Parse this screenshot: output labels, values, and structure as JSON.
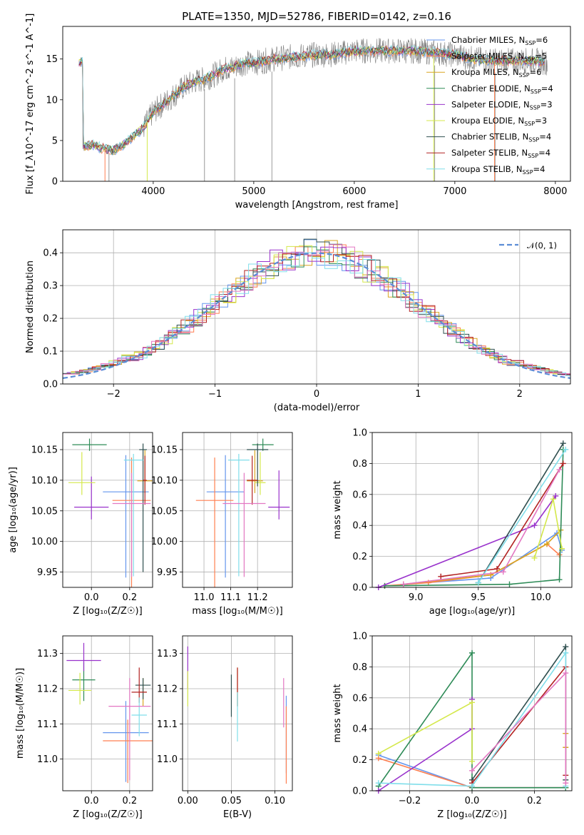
{
  "figure_title": "PLATE=1350, MJD=52786, FIBERID=0142, z=0.16",
  "colors": [
    "#6495ed",
    "#ff7f50",
    "#daa520",
    "#2e8b57",
    "#9932cc",
    "#d4e84b",
    "#2f4f4f",
    "#b22222",
    "#80deea",
    "#e377c2"
  ],
  "chart_data": [
    {
      "id": "spectrum",
      "type": "line",
      "xlabel": "wavelength [Angstrom, rest frame]",
      "ylabel": "Flux [f_λ10^-17 erg cm^-2 s^-1 A^-1]",
      "xlim": [
        3100,
        8150
      ],
      "ylim": [
        0,
        19
      ],
      "xticks": [
        4000,
        5000,
        6000,
        7000,
        8000
      ],
      "yticks": [
        0,
        5,
        10,
        15
      ],
      "legend_position": "right",
      "series": [
        {
          "name": "Chabrier MILES, N_SSP=6"
        },
        {
          "name": "Salpeter MILES, N_SSP=5"
        },
        {
          "name": "Kroupa MILES, N_SSP=6"
        },
        {
          "name": "Chabrier ELODIE, N_SSP=4"
        },
        {
          "name": "Salpeter ELODIE, N_SSP=3"
        },
        {
          "name": "Kroupa ELODIE, N_SSP=3"
        },
        {
          "name": "Chabrier STELIB, N_SSP=4"
        },
        {
          "name": "Salpeter STELIB, N_SSP=4"
        },
        {
          "name": "Kroupa STELIB, N_SSP=4"
        }
      ],
      "data_trend": {
        "x": [
          3300,
          3400,
          3500,
          3600,
          3700,
          3800,
          3900,
          4000,
          4100,
          4200,
          4300,
          4400,
          4500,
          4600,
          4700,
          4800,
          4900,
          5000,
          5200,
          5400,
          5600,
          5800,
          6000,
          6200,
          6400,
          6600,
          6800,
          7000,
          7200,
          7400,
          7600,
          7800,
          7900
        ],
        "y": [
          4.2,
          4.5,
          4.0,
          3.8,
          4.5,
          5.5,
          6.5,
          8.5,
          9.5,
          10.5,
          11.5,
          12.2,
          12.5,
          13.0,
          13.8,
          14.0,
          14.5,
          14.5,
          15.0,
          15.3,
          15.5,
          15.6,
          16.0,
          16.0,
          16.0,
          16.0,
          15.8,
          15.5,
          15.0,
          14.8,
          14.8,
          14.8,
          14.6
        ]
      }
    },
    {
      "id": "residuals",
      "type": "histogram",
      "xlabel": "(data-model)/error",
      "ylabel": "Normed distribution",
      "xlim": [
        -2.5,
        2.5
      ],
      "ylim": [
        0,
        0.47
      ],
      "xticks": [
        -2,
        -1,
        0,
        1,
        2
      ],
      "yticks": [
        0.0,
        0.1,
        0.2,
        0.3,
        0.4
      ],
      "legend_position": "top-right",
      "reference_curve": {
        "name": "𝒩(0, 1)",
        "mean": 0,
        "sigma": 1
      },
      "bin_width": 0.125
    },
    {
      "id": "age_vs_Z",
      "type": "errorbar",
      "xlabel": "Z [log10(Z/Z☉)]",
      "ylabel": "age  [log10(age/yr)]",
      "xlim": [
        -0.15,
        0.32
      ],
      "ylim": [
        9.925,
        10.178
      ],
      "xticks": [
        0.0,
        0.2
      ],
      "yticks": [
        9.95,
        10.0,
        10.05,
        10.1,
        10.15
      ],
      "points": [
        {
          "x": 0.18,
          "y": 10.081,
          "xerr": 0.12,
          "yerr": [
            0.14,
            0.06
          ],
          "c": 0
        },
        {
          "x": 0.21,
          "y": 10.067,
          "xerr": 0.1,
          "yerr": [
            0.15,
            0.07
          ],
          "c": 1
        },
        {
          "x": 0.28,
          "y": 10.099,
          "xerr": 0.04,
          "yerr": [
            0.02,
            0.05
          ],
          "c": 2
        },
        {
          "x": -0.01,
          "y": 10.158,
          "xerr": 0.09,
          "yerr": [
            0.01,
            0.01
          ],
          "c": 3
        },
        {
          "x": 0.0,
          "y": 10.056,
          "xerr": 0.09,
          "yerr": [
            0.02,
            0.05
          ],
          "c": 4
        },
        {
          "x": -0.05,
          "y": 10.096,
          "xerr": 0.07,
          "yerr": [
            0.02,
            0.05
          ],
          "c": 5
        },
        {
          "x": 0.27,
          "y": 10.15,
          "xerr": 0.02,
          "yerr": [
            0.2,
            0.01
          ],
          "c": 6
        },
        {
          "x": 0.28,
          "y": 10.1,
          "xerr": 0.01,
          "yerr": [
            0.04,
            0.04
          ],
          "c": 7
        },
        {
          "x": 0.22,
          "y": 10.133,
          "xerr": 0.05,
          "yerr": [
            0.19,
            0.01
          ],
          "c": 8
        },
        {
          "x": 0.21,
          "y": 10.062,
          "xerr": 0.1,
          "yerr": [
            0.12,
            0.05
          ],
          "c": 9
        }
      ]
    },
    {
      "id": "age_vs_mass",
      "type": "errorbar",
      "xlabel": "mass [log10(M/M☉)]",
      "ylabel": "",
      "xlim": [
        10.92,
        11.33
      ],
      "ylim": [
        9.925,
        10.178
      ],
      "xticks": [
        11.0,
        11.1,
        11.2
      ],
      "yticks": [
        9.95,
        10.0,
        10.05,
        10.1,
        10.15
      ],
      "points": [
        {
          "x": 11.08,
          "y": 10.081,
          "xerr": 0.07,
          "yerr": [
            0.14,
            0.06
          ],
          "c": 0
        },
        {
          "x": 11.04,
          "y": 10.067,
          "xerr": 0.07,
          "yerr": [
            0.15,
            0.07
          ],
          "c": 1
        },
        {
          "x": 11.19,
          "y": 10.099,
          "xerr": 0.03,
          "yerr": [
            0.02,
            0.05
          ],
          "c": 2
        },
        {
          "x": 11.22,
          "y": 10.158,
          "xerr": 0.04,
          "yerr": [
            0.01,
            0.01
          ],
          "c": 3
        },
        {
          "x": 11.28,
          "y": 10.056,
          "xerr": 0.04,
          "yerr": [
            0.02,
            0.06
          ],
          "c": 4
        },
        {
          "x": 11.21,
          "y": 10.096,
          "xerr": 0.02,
          "yerr": [
            0.02,
            0.05
          ],
          "c": 5
        },
        {
          "x": 11.2,
          "y": 10.15,
          "xerr": 0.04,
          "yerr": [
            0.06,
            0.01
          ],
          "c": 6
        },
        {
          "x": 11.18,
          "y": 10.1,
          "xerr": 0.02,
          "yerr": [
            0.04,
            0.04
          ],
          "c": 7
        },
        {
          "x": 11.13,
          "y": 10.133,
          "xerr": 0.04,
          "yerr": [
            0.19,
            0.01
          ],
          "c": 8
        },
        {
          "x": 11.15,
          "y": 10.062,
          "xerr": 0.08,
          "yerr": [
            0.12,
            0.05
          ],
          "c": 9
        }
      ]
    },
    {
      "id": "massweight_vs_age",
      "type": "line",
      "xlabel": "age  [log10(age/yr)]",
      "ylabel": "mass weight",
      "xlim": [
        8.65,
        10.25
      ],
      "ylim": [
        0,
        1.0
      ],
      "xticks": [
        9.0,
        9.5,
        10.0
      ],
      "yticks": [
        0.0,
        0.2,
        0.4,
        0.6,
        0.8,
        1.0
      ],
      "series": [
        {
          "c": 0,
          "x": [
            8.9,
            9.6,
            10.13,
            10.17
          ],
          "y": [
            0.02,
            0.06,
            0.35,
            0.24
          ]
        },
        {
          "c": 1,
          "x": [
            8.75,
            9.1,
            9.6,
            10.05,
            10.15
          ],
          "y": [
            0.01,
            0.03,
            0.08,
            0.28,
            0.21
          ]
        },
        {
          "c": 2,
          "x": [
            8.9,
            9.6,
            10.05,
            10.16
          ],
          "y": [
            0.02,
            0.08,
            0.28,
            0.37
          ]
        },
        {
          "c": 3,
          "x": [
            8.75,
            9.75,
            10.15,
            10.18
          ],
          "y": [
            0.01,
            0.02,
            0.05,
            0.89
          ]
        },
        {
          "c": 4,
          "x": [
            8.7,
            9.95,
            10.12
          ],
          "y": [
            0.0,
            0.4,
            0.59
          ]
        },
        {
          "c": 5,
          "x": [
            9.95,
            10.1,
            10.17
          ],
          "y": [
            0.19,
            0.57,
            0.25
          ]
        },
        {
          "c": 6,
          "x": [
            9.5,
            10.18
          ],
          "y": [
            0.03,
            0.93
          ]
        },
        {
          "c": 7,
          "x": [
            9.2,
            9.65,
            10.18
          ],
          "y": [
            0.07,
            0.12,
            0.8
          ]
        },
        {
          "c": 8,
          "x": [
            9.5,
            10.2
          ],
          "y": [
            0.03,
            0.89
          ]
        },
        {
          "c": 9,
          "x": [
            8.9,
            9.7,
            10.15
          ],
          "y": [
            0.02,
            0.1,
            0.76
          ]
        }
      ]
    },
    {
      "id": "mass_vs_Z",
      "type": "errorbar",
      "xlabel": "Z [log10(Z/Z☉)]",
      "ylabel": "mass [log10(M/M☉)]",
      "xlim": [
        -0.15,
        0.32
      ],
      "ylim": [
        10.91,
        11.35
      ],
      "xticks": [
        0.0,
        0.2
      ],
      "yticks": [
        11.0,
        11.1,
        11.2,
        11.3
      ],
      "points": [
        {
          "x": 0.18,
          "y": 11.075,
          "xerr": 0.12,
          "yerr": [
            0.14,
            0.09
          ],
          "c": 0
        },
        {
          "x": 0.19,
          "y": 11.052,
          "xerr": 0.13,
          "yerr": [
            0.12,
            0.06
          ],
          "c": 1
        },
        {
          "x": 0.27,
          "y": 11.19,
          "xerr": 0.02,
          "yerr": [
            0.04,
            0.04
          ],
          "c": 2
        },
        {
          "x": -0.04,
          "y": 11.225,
          "xerr": 0.06,
          "yerr": [
            0.06,
            0.05
          ],
          "c": 3
        },
        {
          "x": -0.04,
          "y": 11.28,
          "xerr": 0.09,
          "yerr": [
            0.03,
            0.05
          ],
          "c": 4
        },
        {
          "x": -0.06,
          "y": 11.195,
          "xerr": 0.06,
          "yerr": [
            0.04,
            0.05
          ],
          "c": 5
        },
        {
          "x": 0.27,
          "y": 11.21,
          "xerr": 0.04,
          "yerr": [
            0.04,
            0.02
          ],
          "c": 6
        },
        {
          "x": 0.25,
          "y": 11.19,
          "xerr": 0.04,
          "yerr": [
            0.03,
            0.07
          ],
          "c": 7
        },
        {
          "x": 0.25,
          "y": 11.125,
          "xerr": 0.04,
          "yerr": [
            0.06,
            0.05
          ],
          "c": 8
        },
        {
          "x": 0.2,
          "y": 11.15,
          "xerr": 0.11,
          "yerr": [
            0.21,
            0.08
          ],
          "c": 9
        }
      ]
    },
    {
      "id": "mass_vs_ebv",
      "type": "errorbar",
      "xlabel": "E(B-V)",
      "ylabel": "",
      "xlim": [
        -0.006,
        0.12
      ],
      "ylim": [
        10.91,
        11.35
      ],
      "xticks": [
        0.0,
        0.05,
        0.1
      ],
      "yticks": [
        11.0,
        11.1,
        11.2,
        11.3
      ],
      "points": [
        {
          "x": 0.113,
          "y": 11.08,
          "xerr": 0,
          "yerr": [
            0.12,
            0.1
          ],
          "c": 0
        },
        {
          "x": 0.113,
          "y": 11.05,
          "xerr": 0,
          "yerr": [
            0.12,
            0.1
          ],
          "c": 1
        },
        {
          "x": 0.057,
          "y": 11.2,
          "xerr": 0,
          "yerr": [
            0.05,
            0.06
          ],
          "c": 2
        },
        {
          "x": 0.0,
          "y": 11.26,
          "xerr": 0,
          "yerr": [
            0.06,
            0.06
          ],
          "c": 4
        },
        {
          "x": 0.0,
          "y": 11.19,
          "xerr": 0,
          "yerr": [
            0.04,
            0.06
          ],
          "c": 5
        },
        {
          "x": 0.05,
          "y": 11.18,
          "xerr": 0,
          "yerr": [
            0.06,
            0.06
          ],
          "c": 6
        },
        {
          "x": 0.057,
          "y": 11.19,
          "xerr": 0,
          "yerr": [
            0.04,
            0.07
          ],
          "c": 7
        },
        {
          "x": 0.057,
          "y": 11.13,
          "xerr": 0,
          "yerr": [
            0.08,
            0.06
          ],
          "c": 8
        },
        {
          "x": 0.11,
          "y": 11.15,
          "xerr": 0,
          "yerr": [
            0.06,
            0.08
          ],
          "c": 9
        }
      ]
    },
    {
      "id": "massweight_vs_Z",
      "type": "line",
      "xlabel": "Z [log10(Z/Z☉)]",
      "ylabel": "mass weight",
      "xlim": [
        -0.32,
        0.32
      ],
      "ylim": [
        0,
        1.0
      ],
      "xticks": [
        -0.2,
        0.0,
        0.2
      ],
      "yticks": [
        0.0,
        0.2,
        0.4,
        0.6,
        0.8,
        1.0
      ],
      "series": [
        {
          "c": 0,
          "x": [
            -0.3,
            0.0,
            0.3
          ],
          "y": [
            0.23,
            0.02,
            0.02
          ]
        },
        {
          "c": 1,
          "x": [
            -0.3,
            0.0,
            0.3
          ],
          "y": [
            0.21,
            0.02,
            0.02
          ]
        },
        {
          "c": 2,
          "x": [
            0.3,
            0.3,
            0.3
          ],
          "y": [
            0.37,
            0.28,
            0.02
          ]
        },
        {
          "c": 3,
          "x": [
            -0.3,
            0.0,
            0.0,
            0.3
          ],
          "y": [
            0.03,
            0.89,
            0.02,
            0.02
          ]
        },
        {
          "c": 4,
          "x": [
            -0.3,
            0.0,
            0.0
          ],
          "y": [
            0.0,
            0.4,
            0.59
          ]
        },
        {
          "c": 5,
          "x": [
            -0.3,
            0.0,
            0.0
          ],
          "y": [
            0.24,
            0.57,
            0.19
          ]
        },
        {
          "c": 6,
          "x": [
            0.0,
            0.3,
            0.3
          ],
          "y": [
            0.07,
            0.93,
            0.07
          ]
        },
        {
          "c": 7,
          "x": [
            0.0,
            0.3,
            0.3
          ],
          "y": [
            0.05,
            0.8,
            0.1
          ]
        },
        {
          "c": 8,
          "x": [
            -0.3,
            0.0,
            0.3,
            0.3
          ],
          "y": [
            0.05,
            0.03,
            0.89,
            0.03
          ]
        },
        {
          "c": 9,
          "x": [
            0.0,
            0.3,
            0.3
          ],
          "y": [
            0.13,
            0.76,
            0.05
          ]
        }
      ]
    }
  ]
}
